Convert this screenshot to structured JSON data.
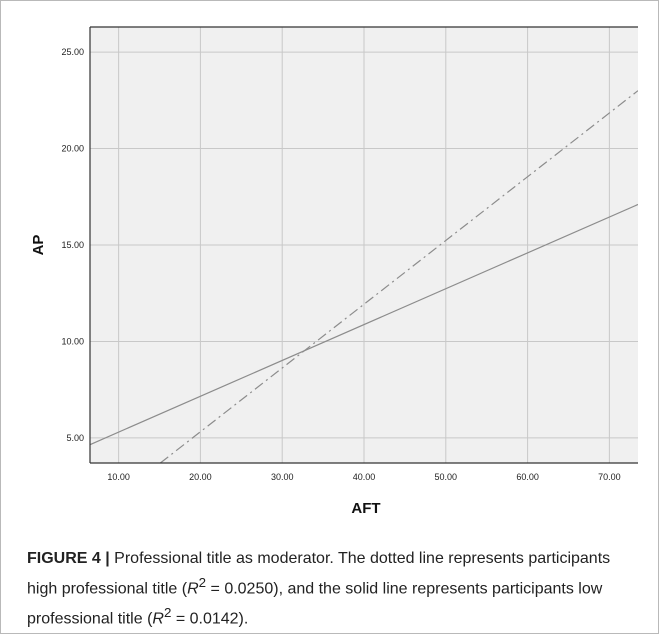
{
  "chart_data": {
    "type": "line",
    "xlabel": "AFT",
    "ylabel": "AP",
    "xlim": [
      6.5,
      73.5
    ],
    "ylim": [
      3.7,
      26.3
    ],
    "x_ticks": [
      "10.00",
      "20.00",
      "30.00",
      "40.00",
      "50.00",
      "60.00",
      "70.00"
    ],
    "x_tick_values": [
      10,
      20,
      30,
      40,
      50,
      60,
      70
    ],
    "y_ticks": [
      "5.00",
      "10.00",
      "15.00",
      "20.00",
      "25.00"
    ],
    "y_tick_values": [
      5,
      10,
      15,
      20,
      25
    ],
    "grid": true,
    "series": [
      {
        "style": "dash-dot",
        "x": [
          15.1,
          73.5
        ],
        "y": [
          3.7,
          23.0
        ]
      },
      {
        "style": "solid",
        "x": [
          6.5,
          73.5
        ],
        "y": [
          4.65,
          17.1
        ]
      }
    ],
    "colors": {
      "plot_bg": "#f0f0f0",
      "grid": "#c8c8c8",
      "line": "#8c8c8c",
      "axis": "#333333"
    }
  },
  "caption": {
    "label": "FIGURE 4 |",
    "text_1": " Professional title as moderator. The dotted line represents participants high professional title (",
    "r1_sym": "R",
    "r1_sup": "2",
    "r1_val": " = 0.0250), and the solid line represents participants low professional title (",
    "r2_sym": "R",
    "r2_sup": "2",
    "r2_val": " = 0.0142)."
  }
}
